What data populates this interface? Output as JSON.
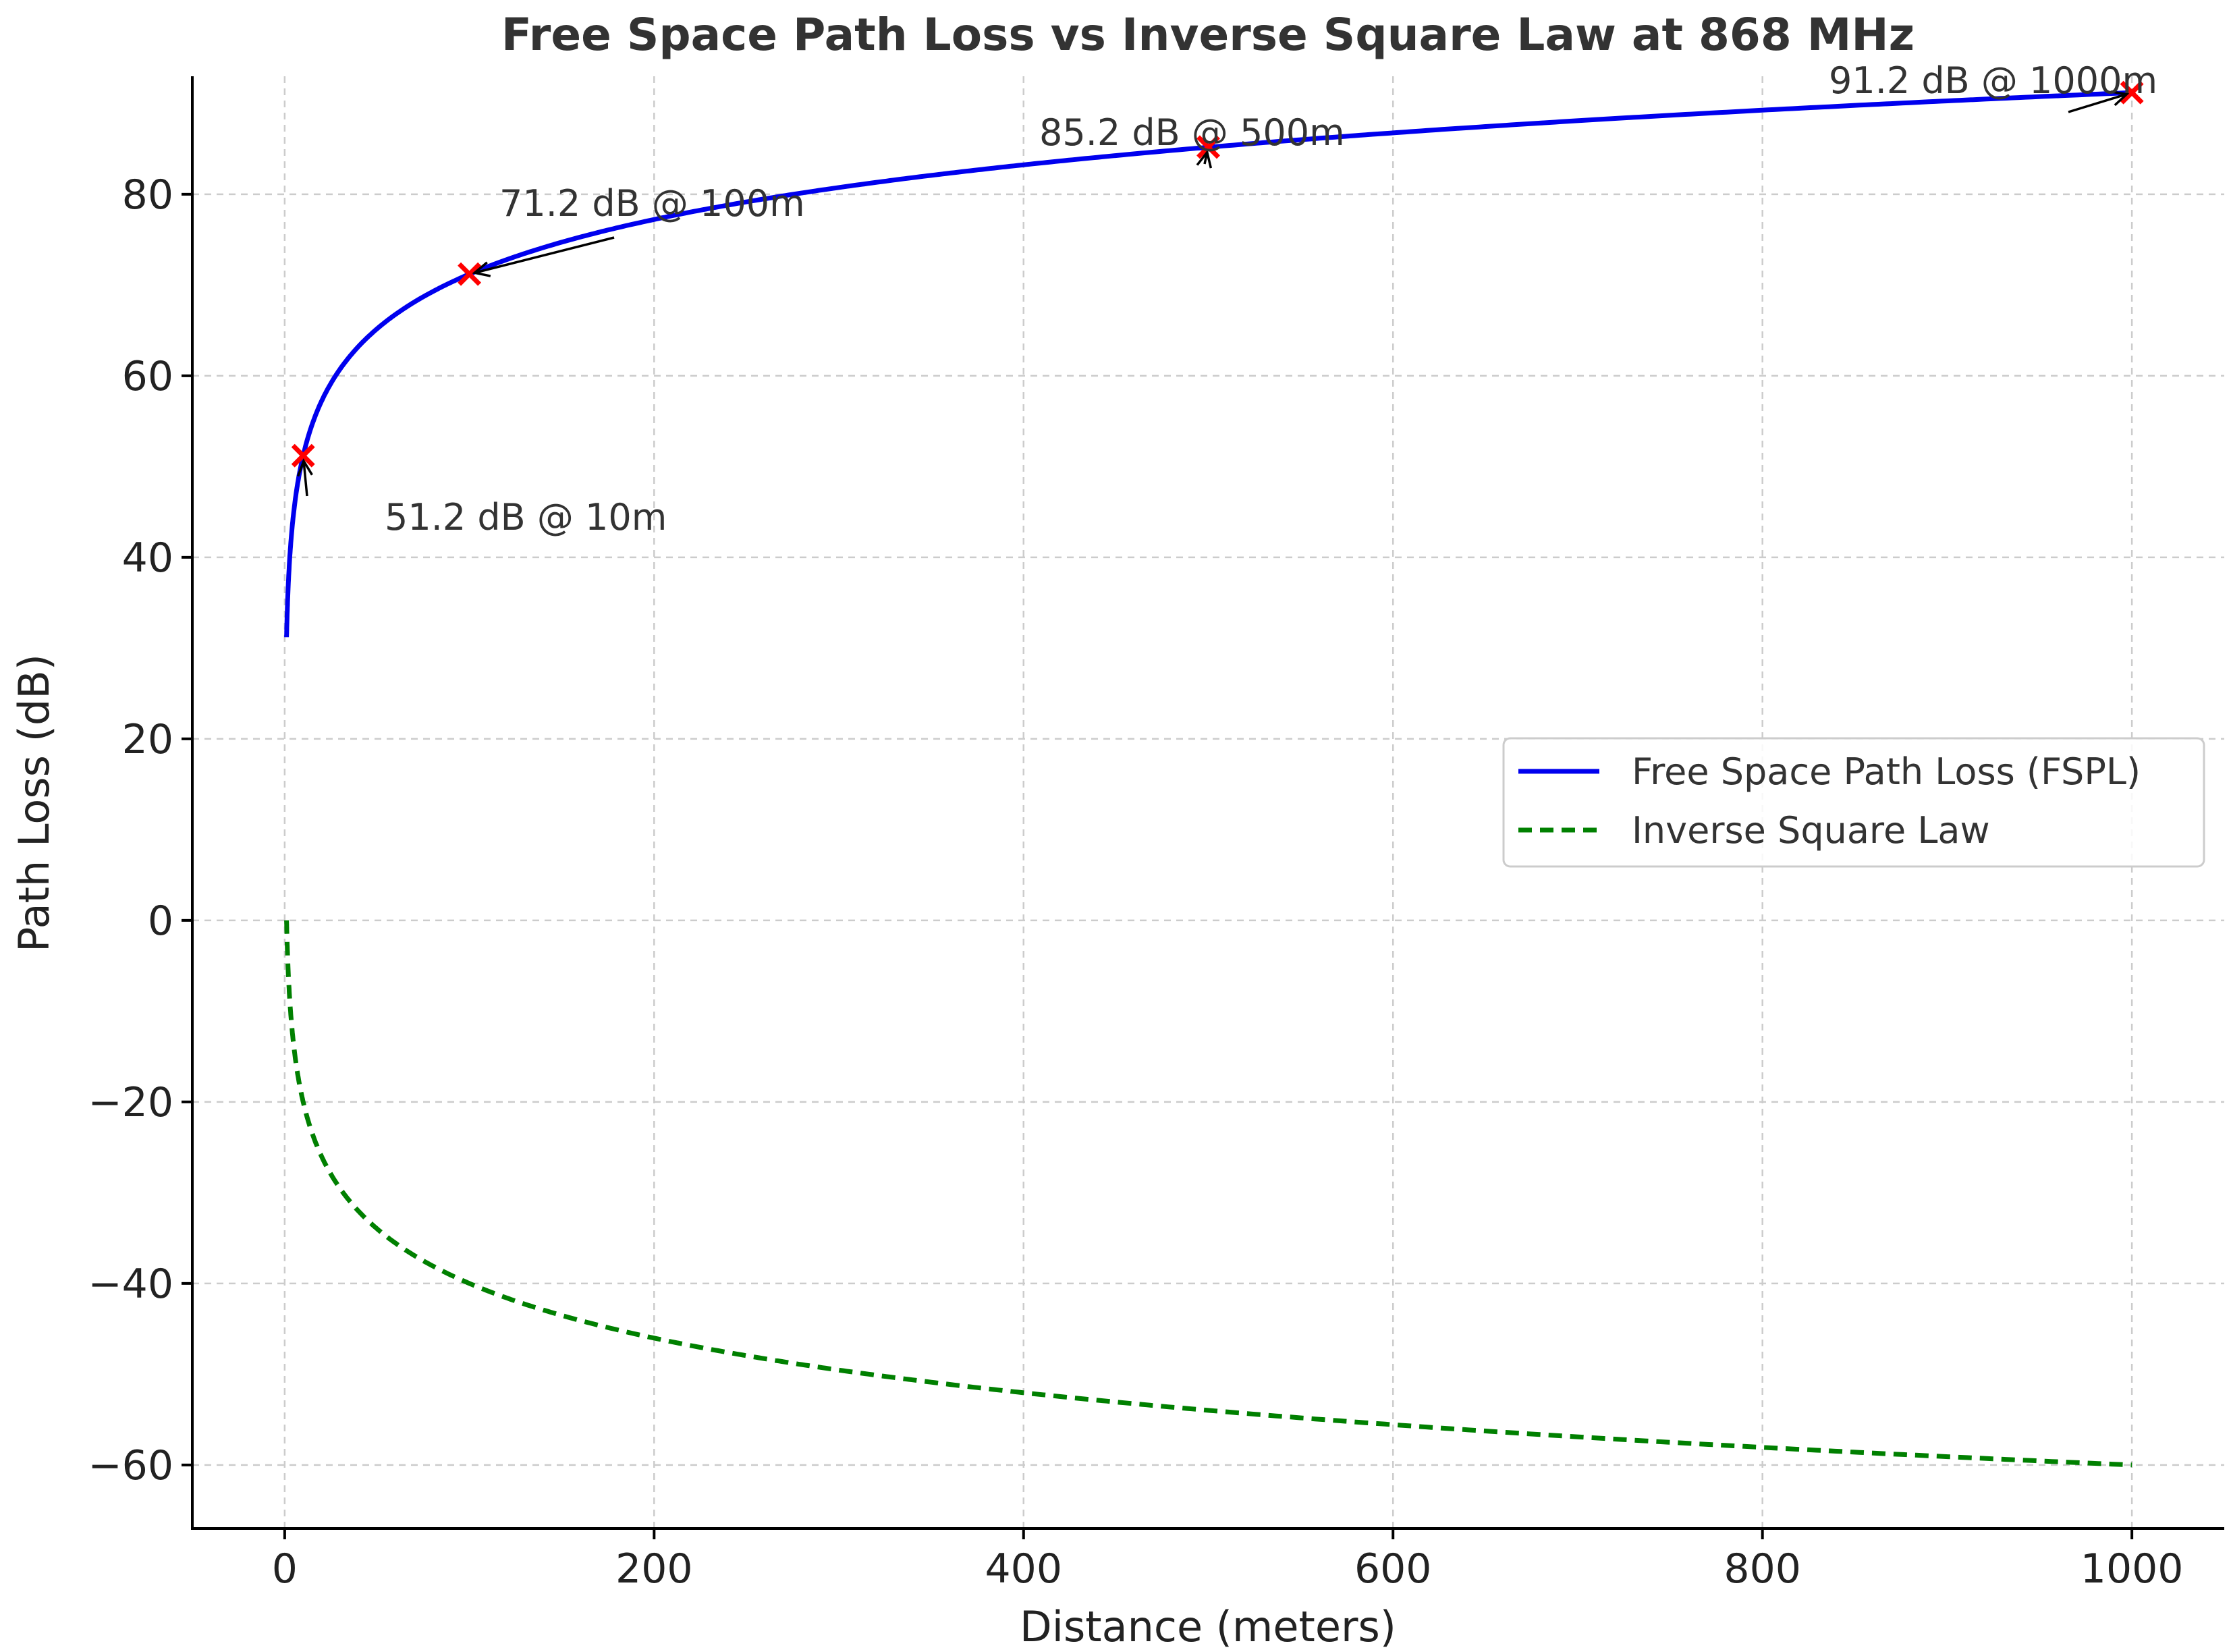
{
  "chart_data": {
    "type": "line",
    "title": "Free Space Path Loss vs Inverse Square Law at 868 MHz",
    "xlabel": "Distance (meters)",
    "ylabel": "Path Loss (dB)",
    "xlim": [
      -50,
      1050
    ],
    "ylim": [
      -67,
      93
    ],
    "xticks": [
      0,
      200,
      400,
      600,
      800,
      1000
    ],
    "xtick_labels": [
      "0",
      "200",
      "400",
      "600",
      "800",
      "1000"
    ],
    "yticks": [
      -60,
      -40,
      -20,
      0,
      20,
      40,
      60,
      80
    ],
    "ytick_labels": [
      "−60",
      "−40",
      "−20",
      "0",
      "20",
      "40",
      "60",
      "80"
    ],
    "grid": true,
    "legend_position": "center-right",
    "series": [
      {
        "name": "Free Space Path Loss (FSPL)",
        "color": "#0000ee",
        "style": "solid",
        "x": [
          1,
          2,
          3,
          5,
          7,
          10,
          15,
          20,
          30,
          40,
          50,
          70,
          100,
          150,
          200,
          300,
          400,
          500,
          600,
          700,
          800,
          900,
          1000
        ],
        "y": [
          31.2,
          37.2,
          40.7,
          45.2,
          48.1,
          51.2,
          54.7,
          57.2,
          60.7,
          63.2,
          65.2,
          68.1,
          71.2,
          74.7,
          77.2,
          80.7,
          83.2,
          85.2,
          86.8,
          88.1,
          89.3,
          90.3,
          91.2
        ]
      },
      {
        "name": "Inverse Square Law",
        "color": "#008000",
        "style": "dashed",
        "x": [
          1,
          2,
          3,
          5,
          7,
          10,
          15,
          20,
          30,
          40,
          50,
          70,
          100,
          150,
          200,
          300,
          400,
          500,
          600,
          700,
          800,
          900,
          1000
        ],
        "y": [
          0,
          -6.0,
          -9.5,
          -14.0,
          -16.9,
          -20.0,
          -23.5,
          -26.0,
          -29.5,
          -32.0,
          -34.0,
          -36.9,
          -40.0,
          -43.5,
          -46.0,
          -49.5,
          -52.0,
          -54.0,
          -55.6,
          -56.9,
          -58.1,
          -59.1,
          -60.0
        ]
      }
    ],
    "markers": [
      {
        "x": 10,
        "y": 51.2,
        "label": "51.2 dB @ 10m"
      },
      {
        "x": 100,
        "y": 71.2,
        "label": "71.2 dB @ 100m"
      },
      {
        "x": 500,
        "y": 85.2,
        "label": "85.2 dB @ 500m"
      },
      {
        "x": 1000,
        "y": 91.2,
        "label": "91.2 dB @ 1000m"
      }
    ],
    "marker_color": "#ff0000"
  }
}
